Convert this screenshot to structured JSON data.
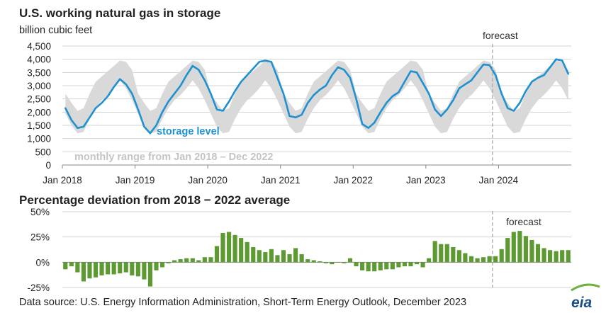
{
  "colors": {
    "storage": "#1f91cf",
    "range": "#d9d9d9",
    "bars": "#5d9b32",
    "grid": "#d3d3d3",
    "forecast_line": "#a6a6a6",
    "storage_label": "#1f91cf",
    "range_label": "#c4c4c4",
    "eia_blue": "#1a4f86",
    "eia_green": "#6cae3f"
  },
  "source": "Data source: U.S. Energy Information Administration, Short-Term Energy Outlook, December 2023",
  "logo_text": "eia",
  "chart_data": [
    {
      "type": "line",
      "title": "U.S. working natural gas in storage",
      "unit_label": "billion cubic feet",
      "forecast_label": "forecast",
      "forecast_start": "2023-12",
      "ylim": [
        0,
        4500
      ],
      "y_ticks": [
        0,
        500,
        1000,
        1500,
        2000,
        2500,
        3000,
        3500,
        4000,
        4500
      ],
      "y_tick_labels": [
        "0",
        "500",
        "1,000",
        "1,500",
        "2,000",
        "2,500",
        "3,000",
        "3,500",
        "4,000",
        "4,500"
      ],
      "x_start": "2018-01",
      "x_end": "2024-12",
      "x_tick_labels": [
        "Jan 2018",
        "Jan 2019",
        "Jan 2020",
        "Jan 2021",
        "Jan 2022",
        "Jan 2023",
        "Jan 2024"
      ],
      "grid": "horizontal",
      "annotations": {
        "storage_level": "storage level",
        "range_note": "monthly range from Jan 2018 – Dec 2022"
      },
      "series": [
        {
          "name": "storage level",
          "x": [
            "2018-01",
            "2018-02",
            "2018-03",
            "2018-04",
            "2018-05",
            "2018-06",
            "2018-07",
            "2018-08",
            "2018-09",
            "2018-10",
            "2018-11",
            "2018-12",
            "2019-01",
            "2019-02",
            "2019-03",
            "2019-04",
            "2019-05",
            "2019-06",
            "2019-07",
            "2019-08",
            "2019-09",
            "2019-10",
            "2019-11",
            "2019-12",
            "2020-01",
            "2020-02",
            "2020-03",
            "2020-04",
            "2020-05",
            "2020-06",
            "2020-07",
            "2020-08",
            "2020-09",
            "2020-10",
            "2020-11",
            "2020-12",
            "2021-01",
            "2021-02",
            "2021-03",
            "2021-04",
            "2021-05",
            "2021-06",
            "2021-07",
            "2021-08",
            "2021-09",
            "2021-10",
            "2021-11",
            "2021-12",
            "2022-01",
            "2022-02",
            "2022-03",
            "2022-04",
            "2022-05",
            "2022-06",
            "2022-07",
            "2022-08",
            "2022-09",
            "2022-10",
            "2022-11",
            "2022-12",
            "2023-01",
            "2023-02",
            "2023-03",
            "2023-04",
            "2023-05",
            "2023-06",
            "2023-07",
            "2023-08",
            "2023-09",
            "2023-10",
            "2023-11",
            "2023-12",
            "2024-01",
            "2024-02",
            "2024-03",
            "2024-04",
            "2024-05",
            "2024-06",
            "2024-07",
            "2024-08",
            "2024-09",
            "2024-10",
            "2024-11",
            "2024-12"
          ],
          "values": [
            2150,
            1700,
            1400,
            1450,
            1800,
            2150,
            2350,
            2600,
            2950,
            3250,
            3050,
            2700,
            2100,
            1450,
            1200,
            1500,
            2000,
            2400,
            2700,
            3000,
            3400,
            3750,
            3600,
            3200,
            2700,
            2100,
            2050,
            2400,
            2800,
            3150,
            3400,
            3650,
            3900,
            3950,
            3900,
            3300,
            2700,
            1850,
            1800,
            1900,
            2350,
            2650,
            2850,
            3000,
            3400,
            3700,
            3600,
            3300,
            2500,
            1550,
            1400,
            1600,
            2000,
            2350,
            2600,
            2750,
            3150,
            3550,
            3500,
            3100,
            2700,
            2100,
            1850,
            2100,
            2450,
            2900,
            3050,
            3200,
            3500,
            3800,
            3780,
            3400,
            2700,
            2150,
            2050,
            2350,
            2800,
            3150,
            3300,
            3400,
            3700,
            4000,
            3950,
            3450
          ]
        },
        {
          "name": "monthly range from Jan 2018 – Dec 2022",
          "low": [
            1950,
            1500,
            1200,
            1250,
            1750,
            2150,
            2450,
            2650,
            2900,
            3200,
            2900,
            2450,
            1950,
            1450,
            1200,
            1250,
            1750,
            2150,
            2450,
            2650,
            2900,
            3200,
            2900,
            2450,
            1950,
            1450,
            1200,
            1250,
            1750,
            2150,
            2450,
            2650,
            2900,
            3200,
            2900,
            2450,
            1950,
            1450,
            1200,
            1250,
            1750,
            2150,
            2450,
            2650,
            2900,
            3200,
            2900,
            2450,
            1950,
            1450,
            1200,
            1250,
            1750,
            2150,
            2450,
            2650,
            2900,
            3200,
            2900,
            2450,
            1950,
            1450,
            1200,
            1250,
            1750,
            2150,
            2450,
            2650,
            2900,
            3200,
            2900,
            2450,
            1950,
            1450,
            1200,
            1250,
            1750,
            2150,
            2450,
            2650,
            2900,
            3200,
            2900,
            2450
          ],
          "high": [
            2700,
            2350,
            2050,
            2150,
            2700,
            3150,
            3350,
            3550,
            3750,
            3950,
            3900,
            3600,
            2700,
            2350,
            2050,
            2150,
            2700,
            3150,
            3350,
            3550,
            3750,
            3950,
            3900,
            3600,
            2700,
            2350,
            2050,
            2150,
            2700,
            3150,
            3350,
            3550,
            3750,
            3950,
            3900,
            3600,
            2700,
            2350,
            2050,
            2150,
            2700,
            3150,
            3350,
            3550,
            3750,
            3950,
            3900,
            3600,
            2700,
            2350,
            2050,
            2150,
            2700,
            3150,
            3350,
            3550,
            3750,
            3950,
            3900,
            3600,
            2700,
            2350,
            2050,
            2150,
            2700,
            3150,
            3350,
            3550,
            3750,
            3950,
            3900,
            3600,
            2700,
            2350,
            2050,
            2150,
            2700,
            3150,
            3350,
            3550,
            3750,
            3950,
            3900,
            3600
          ]
        }
      ]
    },
    {
      "type": "bar",
      "title": "Percentage deviation from 2018 − 2022 average",
      "forecast_label": "forecast",
      "forecast_start": "2023-12",
      "ylim": [
        -25,
        50
      ],
      "y_ticks": [
        -25,
        0,
        25,
        50
      ],
      "y_tick_labels": [
        "-25%",
        "0%",
        "25%",
        "50%"
      ],
      "x_start": "2018-01",
      "x_end": "2024-12",
      "grid": "horizontal",
      "series": [
        {
          "name": "",
          "x": [
            "2018-01",
            "2018-02",
            "2018-03",
            "2018-04",
            "2018-05",
            "2018-06",
            "2018-07",
            "2018-08",
            "2018-09",
            "2018-10",
            "2018-11",
            "2018-12",
            "2019-01",
            "2019-02",
            "2019-03",
            "2019-04",
            "2019-05",
            "2019-06",
            "2019-07",
            "2019-08",
            "2019-09",
            "2019-10",
            "2019-11",
            "2019-12",
            "2020-01",
            "2020-02",
            "2020-03",
            "2020-04",
            "2020-05",
            "2020-06",
            "2020-07",
            "2020-08",
            "2020-09",
            "2020-10",
            "2020-11",
            "2020-12",
            "2021-01",
            "2021-02",
            "2021-03",
            "2021-04",
            "2021-05",
            "2021-06",
            "2021-07",
            "2021-08",
            "2021-09",
            "2021-10",
            "2021-11",
            "2021-12",
            "2022-01",
            "2022-02",
            "2022-03",
            "2022-04",
            "2022-05",
            "2022-06",
            "2022-07",
            "2022-08",
            "2022-09",
            "2022-10",
            "2022-11",
            "2022-12",
            "2023-01",
            "2023-02",
            "2023-03",
            "2023-04",
            "2023-05",
            "2023-06",
            "2023-07",
            "2023-08",
            "2023-09",
            "2023-10",
            "2023-11",
            "2023-12",
            "2024-01",
            "2024-02",
            "2024-03",
            "2024-04",
            "2024-05",
            "2024-06",
            "2024-07",
            "2024-08",
            "2024-09",
            "2024-10",
            "2024-11",
            "2024-12"
          ],
          "values": [
            -7,
            -4,
            -10,
            -19,
            -16,
            -15,
            -13,
            -12,
            -12,
            -11,
            -10,
            -13,
            -14,
            -17,
            -24,
            -8,
            -5,
            -1,
            2,
            3,
            4,
            4,
            2,
            5,
            5,
            16,
            29,
            30,
            27,
            24,
            20,
            15,
            12,
            10,
            13,
            7,
            12,
            8,
            14,
            8,
            3,
            2,
            1,
            -1,
            -2,
            0,
            -1,
            4,
            -4,
            -8,
            -9,
            -9,
            -8,
            -7,
            -7,
            -5,
            -4,
            -4,
            -2,
            -5,
            4,
            21,
            18,
            18,
            15,
            12,
            9,
            6,
            4,
            5,
            6,
            6,
            13,
            24,
            30,
            31,
            26,
            22,
            18,
            14,
            12,
            11,
            12,
            12
          ]
        }
      ]
    }
  ]
}
